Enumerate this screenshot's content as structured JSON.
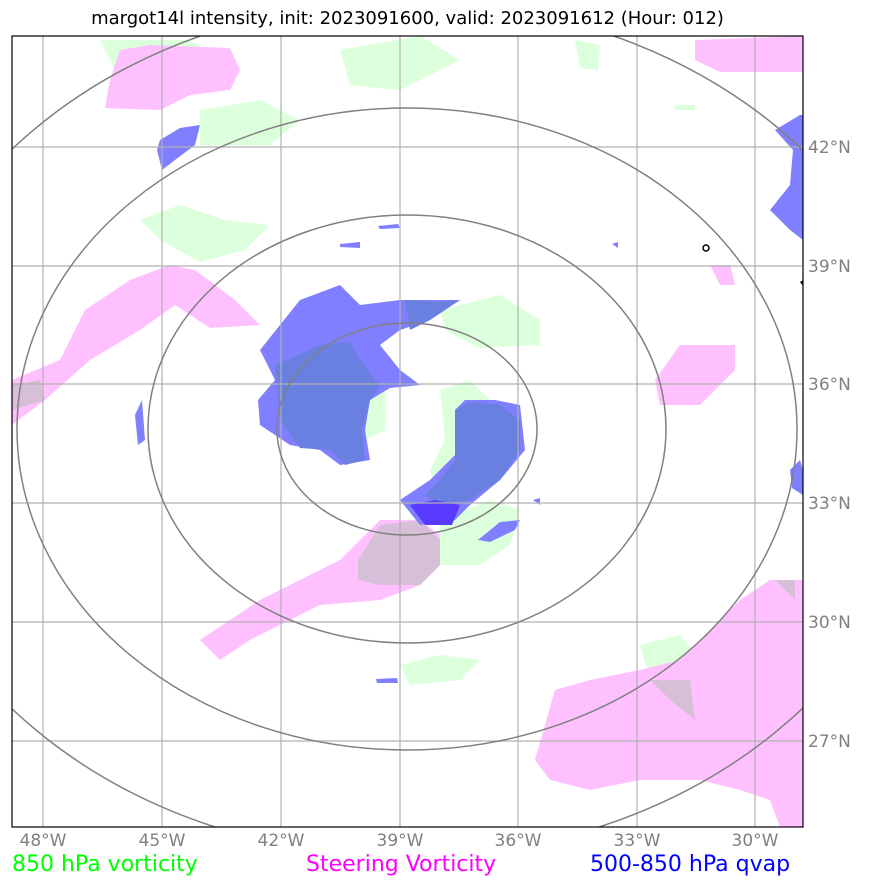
{
  "title": "margot14l intensity, init: 2023091600, valid: 2023091612 (Hour: 012)",
  "lon_ticks": [
    "48°W",
    "45°W",
    "42°W",
    "39°W",
    "36°W",
    "33°W",
    "30°W"
  ],
  "lat_ticks": [
    "42°N",
    "39°N",
    "36°N",
    "33°N",
    "30°N",
    "27°N"
  ],
  "legend": {
    "vort850": {
      "label": "850 hPa vorticity",
      "color": "#00ff00"
    },
    "steering": {
      "label": "Steering Vorticity",
      "color": "#ff00ff"
    },
    "qvap": {
      "label": "500-850 hPa qvap",
      "color": "#0000ff"
    }
  },
  "colors": {
    "vort850_fill": "#dcffdc",
    "steering_fill": "#ffc0ff",
    "qvap_fill": "#7f7fff",
    "overlap_fill": "#d8bfd8",
    "qvap_steer_fill": "#5f7fdf",
    "grid": "#b0b0b0",
    "range_rings": "#808080"
  }
}
